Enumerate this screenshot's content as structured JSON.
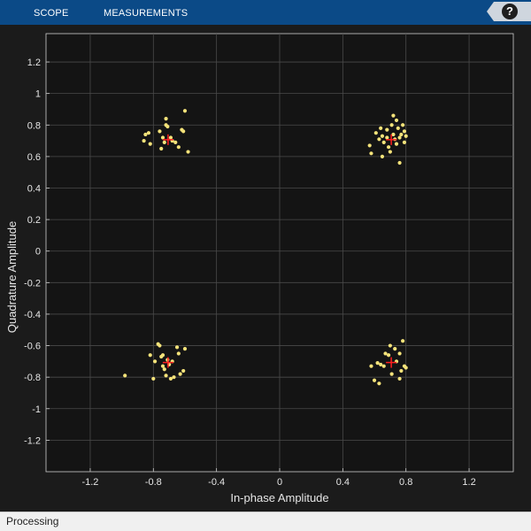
{
  "toolstrip": {
    "tabs": [
      {
        "label": "SCOPE"
      },
      {
        "label": "MEASUREMENTS"
      }
    ],
    "help_label": "?"
  },
  "status": {
    "text": "Processing"
  },
  "colors": {
    "background": "#1b1b1b",
    "axes_background": "#141414",
    "grid": "#4a4a4a",
    "points": "#f5e37a",
    "reference": "#ff2020",
    "toolstrip": "#0b4a87"
  },
  "chart_data": {
    "type": "scatter",
    "xlabel": "In-phase Amplitude",
    "ylabel": "Quadrature Amplitude",
    "xlim": [
      -1.48,
      1.48
    ],
    "ylim": [
      -1.4,
      1.38
    ],
    "xticks": [
      -1.2,
      -0.8,
      -0.4,
      0,
      0.4,
      0.8,
      1.2
    ],
    "xtick_labels": [
      "-1.2",
      "-0.8",
      "-0.4",
      "0",
      "0.4",
      "0.8",
      "1.2"
    ],
    "yticks": [
      1.2,
      1,
      0.8,
      0.6,
      0.4,
      0.2,
      0,
      -0.2,
      -0.4,
      -0.6,
      -0.8,
      -1,
      -1.2
    ],
    "ytick_labels": [
      "1.2",
      "1",
      "0.8",
      "0.6",
      "0.4",
      "0.2",
      "0",
      "-0.2",
      "-0.4",
      "-0.6",
      "-0.8",
      "-1",
      "-1.2"
    ],
    "grid": true,
    "reference_points": [
      {
        "x": -0.707,
        "y": 0.707
      },
      {
        "x": 0.707,
        "y": 0.707
      },
      {
        "x": -0.707,
        "y": -0.707
      },
      {
        "x": 0.707,
        "y": -0.707
      }
    ],
    "samples": [
      {
        "x": -0.85,
        "y": 0.74
      },
      {
        "x": -0.86,
        "y": 0.7
      },
      {
        "x": -0.83,
        "y": 0.75
      },
      {
        "x": -0.82,
        "y": 0.68
      },
      {
        "x": -0.76,
        "y": 0.76
      },
      {
        "x": -0.74,
        "y": 0.72
      },
      {
        "x": -0.72,
        "y": 0.8
      },
      {
        "x": -0.71,
        "y": 0.79
      },
      {
        "x": -0.72,
        "y": 0.84
      },
      {
        "x": -0.69,
        "y": 0.72
      },
      {
        "x": -0.73,
        "y": 0.69
      },
      {
        "x": -0.75,
        "y": 0.65
      },
      {
        "x": -0.66,
        "y": 0.69
      },
      {
        "x": -0.64,
        "y": 0.66
      },
      {
        "x": -0.62,
        "y": 0.77
      },
      {
        "x": -0.61,
        "y": 0.76
      },
      {
        "x": -0.6,
        "y": 0.89
      },
      {
        "x": -0.58,
        "y": 0.63
      },
      {
        "x": -0.68,
        "y": 0.7
      },
      {
        "x": 0.57,
        "y": 0.67
      },
      {
        "x": 0.58,
        "y": 0.62
      },
      {
        "x": 0.61,
        "y": 0.75
      },
      {
        "x": 0.63,
        "y": 0.71
      },
      {
        "x": 0.65,
        "y": 0.6
      },
      {
        "x": 0.64,
        "y": 0.78
      },
      {
        "x": 0.66,
        "y": 0.69
      },
      {
        "x": 0.68,
        "y": 0.77
      },
      {
        "x": 0.69,
        "y": 0.66
      },
      {
        "x": 0.7,
        "y": 0.63
      },
      {
        "x": 0.71,
        "y": 0.8
      },
      {
        "x": 0.72,
        "y": 0.86
      },
      {
        "x": 0.72,
        "y": 0.74
      },
      {
        "x": 0.73,
        "y": 0.71
      },
      {
        "x": 0.74,
        "y": 0.83
      },
      {
        "x": 0.75,
        "y": 0.78
      },
      {
        "x": 0.74,
        "y": 0.68
      },
      {
        "x": 0.76,
        "y": 0.72
      },
      {
        "x": 0.77,
        "y": 0.74
      },
      {
        "x": 0.76,
        "y": 0.56
      },
      {
        "x": 0.78,
        "y": 0.8
      },
      {
        "x": 0.79,
        "y": 0.69
      },
      {
        "x": 0.8,
        "y": 0.73
      },
      {
        "x": 0.79,
        "y": 0.76
      },
      {
        "x": 0.68,
        "y": 0.72
      },
      {
        "x": 0.65,
        "y": 0.73
      },
      {
        "x": -0.98,
        "y": -0.79
      },
      {
        "x": -0.82,
        "y": -0.66
      },
      {
        "x": -0.79,
        "y": -0.7
      },
      {
        "x": -0.8,
        "y": -0.81
      },
      {
        "x": -0.77,
        "y": -0.59
      },
      {
        "x": -0.76,
        "y": -0.6
      },
      {
        "x": -0.75,
        "y": -0.67
      },
      {
        "x": -0.74,
        "y": -0.66
      },
      {
        "x": -0.73,
        "y": -0.75
      },
      {
        "x": -0.72,
        "y": -0.79
      },
      {
        "x": -0.7,
        "y": -0.72
      },
      {
        "x": -0.69,
        "y": -0.81
      },
      {
        "x": -0.68,
        "y": -0.7
      },
      {
        "x": -0.67,
        "y": -0.8
      },
      {
        "x": -0.65,
        "y": -0.61
      },
      {
        "x": -0.64,
        "y": -0.65
      },
      {
        "x": -0.63,
        "y": -0.78
      },
      {
        "x": -0.61,
        "y": -0.76
      },
      {
        "x": -0.6,
        "y": -0.62
      },
      {
        "x": -0.74,
        "y": -0.73
      },
      {
        "x": -0.71,
        "y": -0.69
      },
      {
        "x": 0.58,
        "y": -0.73
      },
      {
        "x": 0.6,
        "y": -0.82
      },
      {
        "x": 0.62,
        "y": -0.71
      },
      {
        "x": 0.63,
        "y": -0.84
      },
      {
        "x": 0.64,
        "y": -0.72
      },
      {
        "x": 0.66,
        "y": -0.73
      },
      {
        "x": 0.67,
        "y": -0.65
      },
      {
        "x": 0.69,
        "y": -0.66
      },
      {
        "x": 0.7,
        "y": -0.6
      },
      {
        "x": 0.71,
        "y": -0.78
      },
      {
        "x": 0.73,
        "y": -0.62
      },
      {
        "x": 0.74,
        "y": -0.7
      },
      {
        "x": 0.76,
        "y": -0.65
      },
      {
        "x": 0.77,
        "y": -0.76
      },
      {
        "x": 0.76,
        "y": -0.81
      },
      {
        "x": 0.79,
        "y": -0.73
      },
      {
        "x": 0.8,
        "y": -0.74
      },
      {
        "x": 0.78,
        "y": -0.57
      }
    ]
  }
}
